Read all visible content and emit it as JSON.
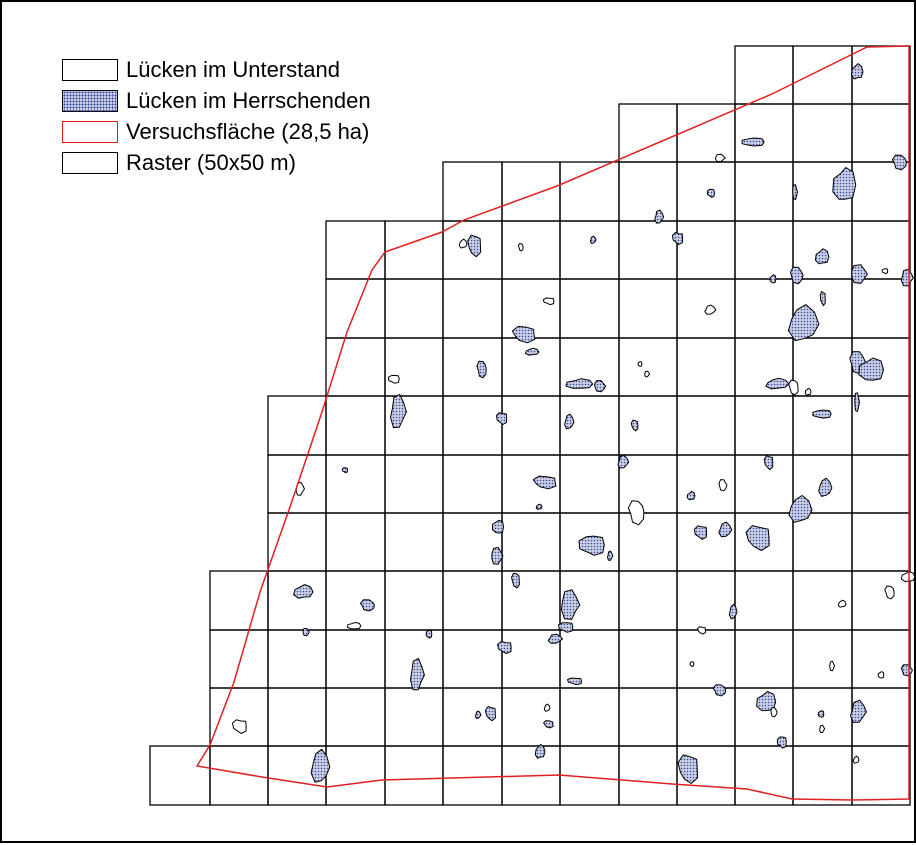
{
  "legend": {
    "items": [
      {
        "label": "Lücken im Unterstand"
      },
      {
        "label": "Lücken im Herrschenden"
      },
      {
        "label": "Versuchsfläche (28,5 ha)"
      },
      {
        "label": "Raster (50x50 m)"
      }
    ]
  },
  "colors": {
    "boundary": "#e02020",
    "grid": "#000000",
    "gap_fill": "#c9cfe6",
    "gap_dots": "#3a4a9a",
    "background": "#ffffff"
  }
}
